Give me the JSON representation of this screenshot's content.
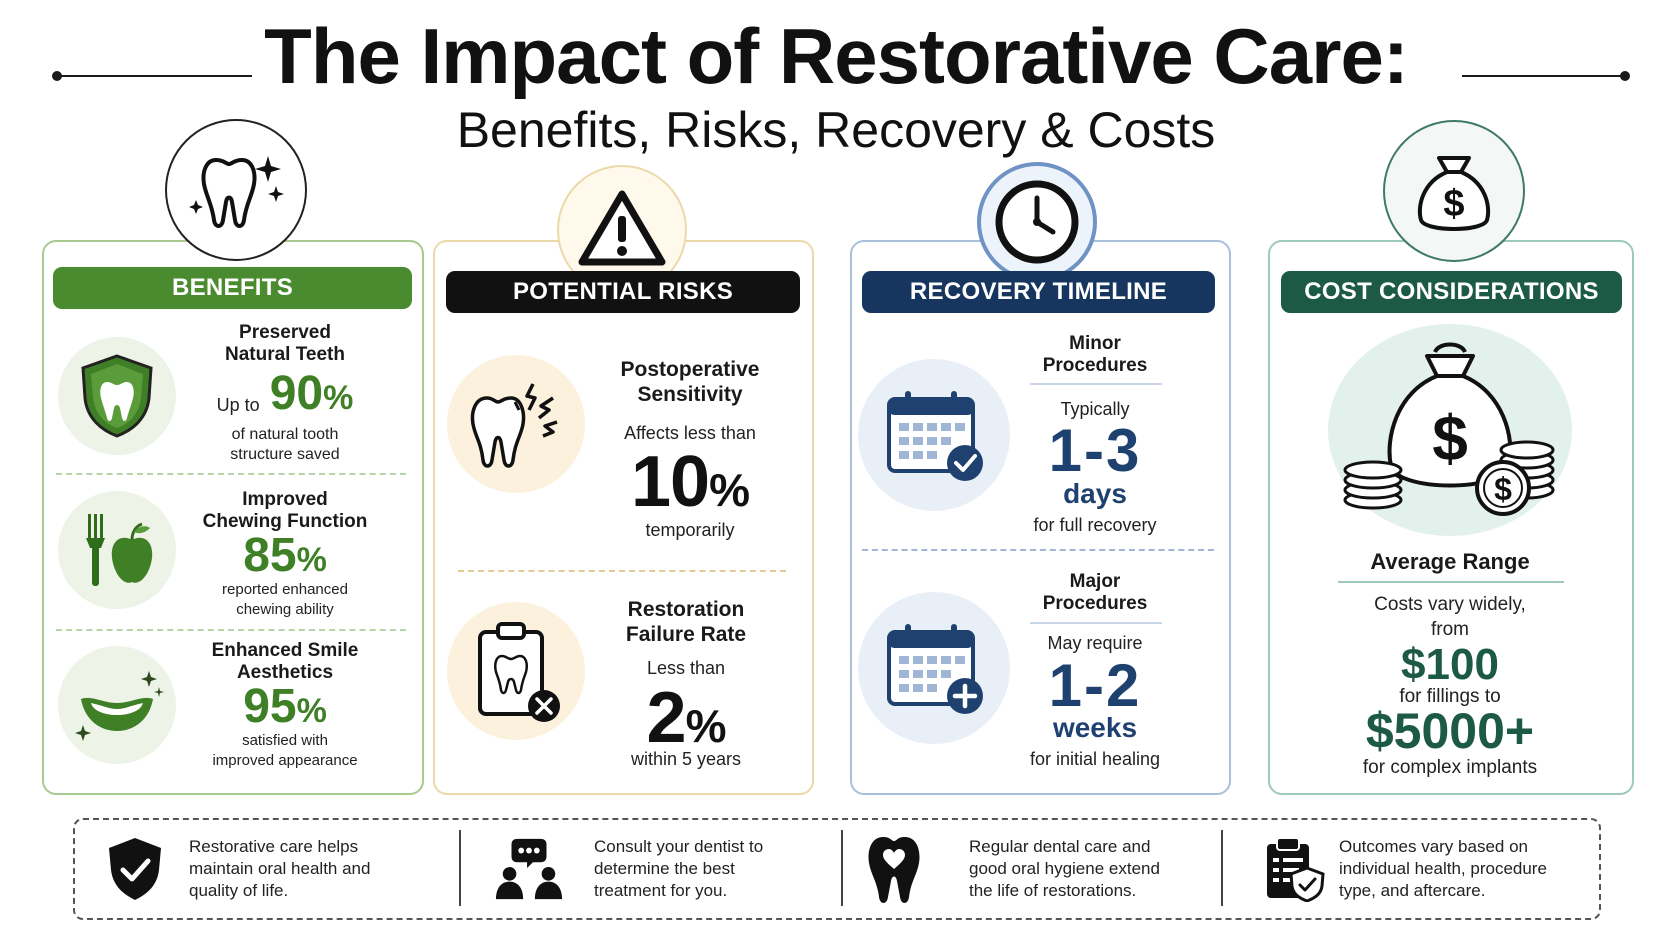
{
  "title": "The Impact of Restorative Care:",
  "subtitle": "Benefits, Risks, Recovery & Costs",
  "benefits": {
    "header": "BENEFITS",
    "items": [
      {
        "label": "Preserved\nNatural Teeth",
        "prefix": "Up to",
        "value": "90",
        "unit": "%",
        "desc": "of natural tooth\nstructure saved",
        "icon": "shield-tooth-icon"
      },
      {
        "label": "Improved\nChewing Function",
        "value": "85",
        "unit": "%",
        "desc": "reported enhanced\nchewing ability",
        "icon": "fork-apple-icon"
      },
      {
        "label": "Enhanced Smile\nAesthetics",
        "value": "95",
        "unit": "%",
        "desc": "satisfied with\nimproved appearance",
        "icon": "smile-icon"
      }
    ]
  },
  "risks": {
    "header": "POTENTIAL RISKS",
    "items": [
      {
        "label": "Postoperative\nSensitivity",
        "pre": "Affects less than",
        "value": "10",
        "unit": "%",
        "post": "temporarily",
        "icon": "sensitive-tooth-icon"
      },
      {
        "label": "Restoration\nFailure Rate",
        "pre": "Less than",
        "value": "2",
        "unit": "%",
        "post": "within 5 years",
        "icon": "clipboard-tooth-icon"
      }
    ]
  },
  "recovery": {
    "header": "RECOVERY TIMELINE",
    "items": [
      {
        "label": "Minor\nProcedures",
        "pre": "Typically",
        "value": "1-3",
        "unit": "days",
        "post": "for full recovery",
        "icon": "calendar-check-icon"
      },
      {
        "label": "Major\nProcedures",
        "pre": "May require",
        "value": "1-2",
        "unit": "weeks",
        "post": "for initial healing",
        "icon": "calendar-plus-icon"
      }
    ]
  },
  "cost": {
    "header": "COST CONSIDERATIONS",
    "label": "Average Range",
    "desc": "Costs vary widely,\nfrom",
    "low": "$100",
    "low_desc": "for fillings to",
    "high": "$5000+",
    "high_desc": "for complex implants",
    "icon": "money-bag-coins-icon"
  },
  "footer": [
    {
      "text": "Restorative care helps\nmaintain oral health and\nquality of life.",
      "icon": "shield-check-icon"
    },
    {
      "text": "Consult your dentist to\ndetermine the best\ntreatment for you.",
      "icon": "people-chat-icon"
    },
    {
      "text": "Regular dental care and\ngood oral hygiene extend\nthe life of restorations.",
      "icon": "tooth-heart-icon"
    },
    {
      "text": "Outcomes vary based on\nindividual health, procedure\ntype, and aftercare.",
      "icon": "clipboard-shield-icon"
    }
  ],
  "colors": {
    "green": "#4a8b2f",
    "black": "#111111",
    "navy": "#16365f",
    "teal": "#1d5a46"
  }
}
